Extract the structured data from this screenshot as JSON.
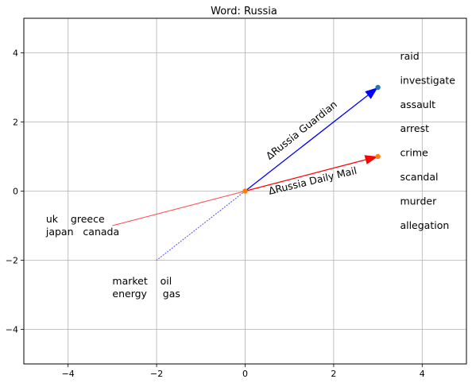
{
  "chart_data": {
    "type": "scatter",
    "title": "Word: Russia",
    "xlim": [
      -5,
      5
    ],
    "ylim": [
      -5,
      5
    ],
    "xticks": [
      -4,
      -2,
      0,
      2,
      4
    ],
    "yticks": [
      -4,
      -2,
      0,
      2,
      4
    ],
    "xtick_labels": [
      "−4",
      "−2",
      "0",
      "2",
      "4"
    ],
    "ytick_labels": [
      "−4",
      "−2",
      "0",
      "2",
      "4"
    ],
    "grid": true,
    "origin": [
      0,
      0
    ],
    "points": [
      {
        "x": 3,
        "y": 3,
        "color": "#1f77b4"
      },
      {
        "x": 3,
        "y": 1,
        "color": "#ff7f0e"
      },
      {
        "x": 0,
        "y": 0,
        "color": "#ff7f0e"
      }
    ],
    "arrows": [
      {
        "name": "ΔRussia Guardian",
        "from": [
          0,
          0
        ],
        "to": [
          3,
          3
        ],
        "color": "#0000ff"
      },
      {
        "name": "ΔRussia Daily Mail",
        "from": [
          0,
          0
        ],
        "to": [
          3,
          1
        ],
        "color": "#ff0000"
      }
    ],
    "lines": [
      {
        "from": [
          0,
          0
        ],
        "to": [
          -3,
          -1
        ],
        "color": "#ff0000",
        "style": "solid"
      },
      {
        "from": [
          0,
          0
        ],
        "to": [
          -2,
          -2
        ],
        "color": "#0000ff",
        "style": "dashed"
      }
    ],
    "word_groups": [
      {
        "words": [
          "uk",
          "greece",
          "japan",
          "canada"
        ],
        "line1": "uk    greece",
        "line2": "japan   canada",
        "x": -4.5,
        "y": -0.95
      },
      {
        "words": [
          "market",
          "oil",
          "energy",
          "gas"
        ],
        "line1": "market    oil",
        "line2": "energy     gas",
        "x": -3,
        "y": -2.75
      }
    ],
    "word_list": {
      "x": 3.5,
      "words": [
        "raid",
        "investigate",
        "assault",
        "arrest",
        "crime",
        "scandal",
        "murder",
        "allegation"
      ],
      "y": [
        3.9,
        3.2,
        2.5,
        1.8,
        1.1,
        0.4,
        -0.3,
        -1.0
      ]
    },
    "arrow_labels": [
      {
        "name": "ΔRussia Guardian",
        "x": 0.55,
        "y": 0.9,
        "angle": -38.5
      },
      {
        "name": "ΔRussia Daily Mail",
        "x": 0.55,
        "y": -0.1,
        "angle": -13.4
      }
    ]
  }
}
